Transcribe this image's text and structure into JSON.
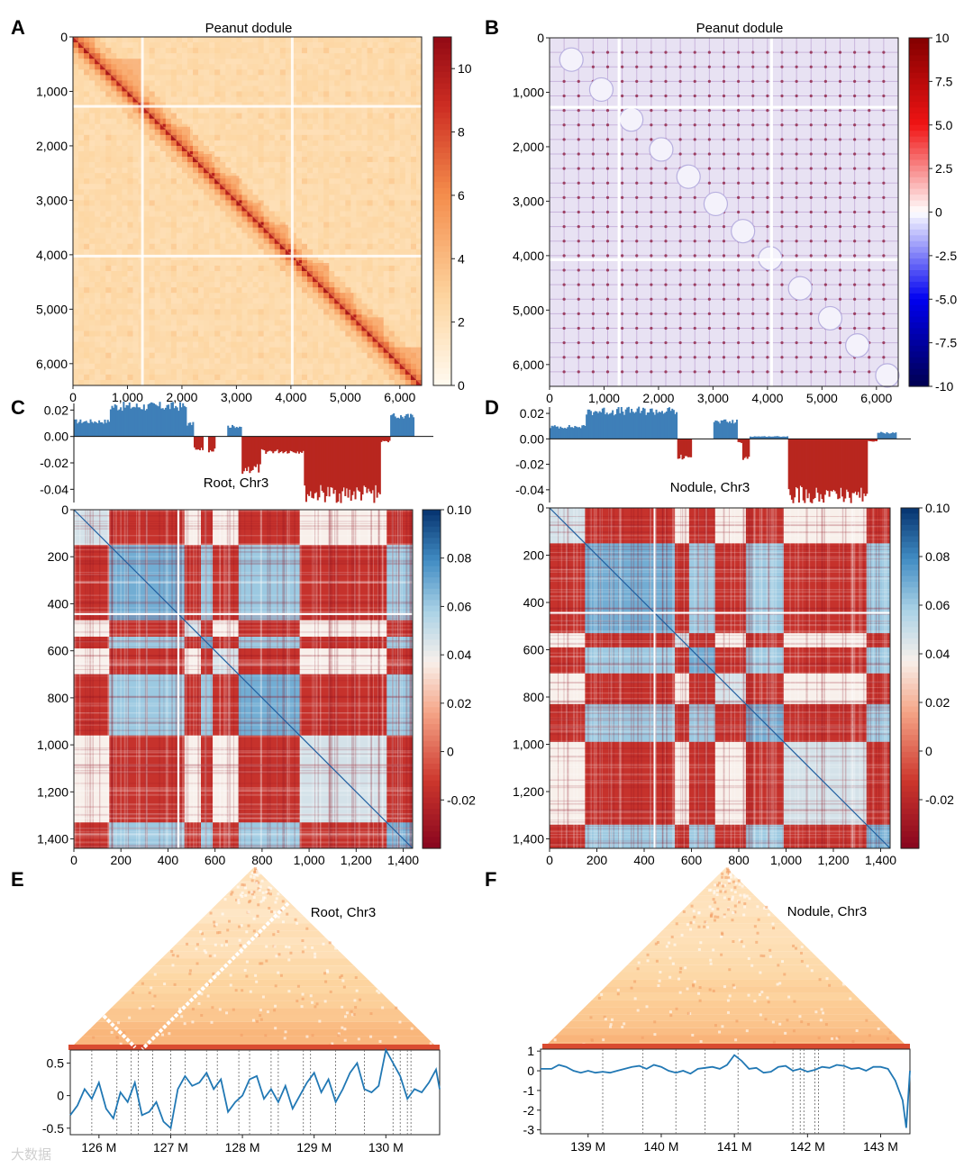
{
  "watermark": "大数据",
  "colors": {
    "orange_high": "#b71c1c",
    "blue_high": "#0a4f96",
    "red_low": "#b3000f",
    "line": "#2178b4"
  },
  "chart_data": [
    {
      "id": "A",
      "panel_label": "A",
      "type": "heatmap",
      "title": "Peanut dodule",
      "xlim": [
        0,
        6400
      ],
      "ylim": [
        0,
        6400
      ],
      "ticks": [
        0,
        1000,
        2000,
        3000,
        4000,
        5000,
        6000
      ],
      "tick_labels": [
        "0",
        "1,000",
        "2,000",
        "3,000",
        "4,000",
        "5,000",
        "6,000"
      ],
      "colorbar": {
        "range": [
          0,
          11
        ],
        "ticks": [
          0,
          2,
          4,
          6,
          8,
          10
        ],
        "tick_labels": [
          "0",
          "2",
          "4",
          "6",
          "8",
          "10"
        ]
      },
      "block_bounds": [
        0,
        400,
        1250,
        1650,
        2150,
        2550,
        3050,
        3450,
        3950,
        4150,
        4700,
        5150,
        5700,
        6400
      ]
    },
    {
      "id": "B",
      "panel_label": "B",
      "type": "heatmap",
      "title": "Peanut dodule",
      "xlim": [
        0,
        6400
      ],
      "ylim": [
        0,
        6400
      ],
      "ticks": [
        0,
        1000,
        2000,
        3000,
        4000,
        5000,
        6000
      ],
      "tick_labels": [
        "0",
        "1,000",
        "2,000",
        "3,000",
        "4,000",
        "5,000",
        "6,000"
      ],
      "colorbar": {
        "range": [
          -10,
          10
        ],
        "ticks": [
          10,
          7.5,
          5.0,
          2.5,
          0,
          -2.5,
          -5.0,
          -7.5,
          -10
        ],
        "tick_labels": [
          "10",
          "7.5",
          "5.0",
          "2.5",
          "0",
          "-2.5",
          "-5.0",
          "-7.5",
          "-10"
        ]
      },
      "circle_centers": [
        400,
        950,
        1500,
        2050,
        2550,
        3050,
        3550,
        4050,
        4600,
        5150,
        5650,
        6200
      ]
    },
    {
      "id": "C",
      "panel_label": "C",
      "type": "heatmap",
      "track_title": "Root, Chr3",
      "track_ylim": [
        -0.05,
        0.025
      ],
      "track_ticks": [
        0.02,
        0.0,
        -0.02,
        -0.04
      ],
      "track_tick_labels": [
        "0.02",
        "0.00",
        "-0.02",
        "-0.04"
      ],
      "eigenvector_segments": [
        {
          "start": 0,
          "end": 150,
          "value": 0.012
        },
        {
          "start": 150,
          "end": 470,
          "value": 0.024
        },
        {
          "start": 470,
          "end": 500,
          "value": 0.01
        },
        {
          "start": 500,
          "end": 540,
          "value": -0.01
        },
        {
          "start": 540,
          "end": 560,
          "value": 0.0
        },
        {
          "start": 560,
          "end": 590,
          "value": -0.011
        },
        {
          "start": 590,
          "end": 640,
          "value": 0.0
        },
        {
          "start": 640,
          "end": 700,
          "value": 0.008
        },
        {
          "start": 700,
          "end": 780,
          "value": -0.026
        },
        {
          "start": 780,
          "end": 960,
          "value": -0.012
        },
        {
          "start": 960,
          "end": 1280,
          "value": -0.046
        },
        {
          "start": 1280,
          "end": 1320,
          "value": -0.004
        },
        {
          "start": 1320,
          "end": 1420,
          "value": 0.016
        }
      ],
      "xlim": [
        0,
        1440
      ],
      "ylim": [
        0,
        1440
      ],
      "ticks": [
        0,
        200,
        400,
        600,
        800,
        1000,
        1200,
        1400
      ],
      "tick_labels": [
        "0",
        "200",
        "400",
        "600",
        "800",
        "1,000",
        "1,200",
        "1,400"
      ],
      "compartment_bounds": [
        0,
        150,
        470,
        540,
        590,
        700,
        960,
        1330,
        1440
      ],
      "colorbar": {
        "range": [
          -0.04,
          0.1
        ],
        "ticks": [
          0.1,
          0.08,
          0.06,
          0.04,
          0.02,
          0,
          -0.02
        ],
        "tick_labels": [
          "0.10",
          "0.08",
          "0.06",
          "0.04",
          "0.02",
          "0",
          "-0.02"
        ]
      }
    },
    {
      "id": "D",
      "panel_label": "D",
      "type": "heatmap",
      "track_title": "Nodule, Chr3",
      "track_ylim": [
        -0.05,
        0.025
      ],
      "track_ticks": [
        0.02,
        0.0,
        -0.02,
        -0.04
      ],
      "track_tick_labels": [
        "0.02",
        "0.00",
        "-0.02",
        "-0.04"
      ],
      "eigenvector_segments": [
        {
          "start": 0,
          "end": 150,
          "value": 0.01
        },
        {
          "start": 150,
          "end": 530,
          "value": 0.023
        },
        {
          "start": 530,
          "end": 590,
          "value": -0.015
        },
        {
          "start": 590,
          "end": 680,
          "value": 0.0
        },
        {
          "start": 680,
          "end": 780,
          "value": 0.014
        },
        {
          "start": 780,
          "end": 800,
          "value": -0.003
        },
        {
          "start": 800,
          "end": 830,
          "value": -0.016
        },
        {
          "start": 830,
          "end": 990,
          "value": 0.002
        },
        {
          "start": 990,
          "end": 1320,
          "value": -0.046
        },
        {
          "start": 1320,
          "end": 1360,
          "value": -0.002
        },
        {
          "start": 1360,
          "end": 1440,
          "value": 0.005
        }
      ],
      "xlim": [
        0,
        1440
      ],
      "ylim": [
        0,
        1440
      ],
      "ticks": [
        0,
        200,
        400,
        600,
        800,
        1000,
        1200,
        1400
      ],
      "tick_labels": [
        "0",
        "200",
        "400",
        "600",
        "800",
        "1,000",
        "1,200",
        "1,400"
      ],
      "compartment_bounds": [
        0,
        150,
        530,
        590,
        700,
        830,
        990,
        1340,
        1440
      ],
      "colorbar": {
        "range": [
          -0.04,
          0.1
        ],
        "ticks": [
          0.1,
          0.08,
          0.06,
          0.04,
          0.02,
          0,
          -0.02
        ],
        "tick_labels": [
          "0.10",
          "0.08",
          "0.06",
          "0.04",
          "0.02",
          "0",
          "-0.02"
        ]
      }
    },
    {
      "id": "E",
      "panel_label": "E",
      "type": "line",
      "title": "Root, Chr3",
      "xlim": [
        125.6,
        130.75
      ],
      "ylim": [
        -0.6,
        0.7
      ],
      "xticks": [
        126,
        127,
        128,
        129,
        130
      ],
      "xtick_labels": [
        "126 M",
        "127 M",
        "128 M",
        "129 M",
        "130 M"
      ],
      "yticks": [
        0.5,
        0,
        -0.5
      ],
      "ytick_labels": [
        "0.5",
        "0",
        "-0.5"
      ],
      "boundaries": [
        125.9,
        126.25,
        126.45,
        126.55,
        126.75,
        127.0,
        127.2,
        127.5,
        127.65,
        127.95,
        128.1,
        128.4,
        128.5,
        128.85,
        128.95,
        129.3,
        129.7,
        130.1,
        130.2,
        130.3,
        130.35
      ],
      "x": [
        125.6,
        125.7,
        125.8,
        125.9,
        126.0,
        126.1,
        126.2,
        126.3,
        126.4,
        126.5,
        126.6,
        126.7,
        126.8,
        126.9,
        127.0,
        127.1,
        127.2,
        127.3,
        127.4,
        127.5,
        127.6,
        127.7,
        127.8,
        127.9,
        128.0,
        128.1,
        128.2,
        128.3,
        128.4,
        128.5,
        128.6,
        128.7,
        128.8,
        128.9,
        129.0,
        129.1,
        129.2,
        129.3,
        129.4,
        129.5,
        129.6,
        129.7,
        129.8,
        129.9,
        130.0,
        130.1,
        130.2,
        130.3,
        130.4,
        130.5,
        130.6,
        130.7,
        130.75
      ],
      "values": [
        -0.3,
        -0.15,
        0.1,
        -0.05,
        0.2,
        -0.2,
        -0.35,
        0.05,
        -0.1,
        0.2,
        -0.3,
        -0.25,
        -0.1,
        -0.4,
        -0.5,
        0.1,
        0.3,
        0.15,
        0.2,
        0.35,
        0.1,
        0.25,
        -0.25,
        -0.1,
        0.0,
        0.25,
        0.3,
        -0.05,
        0.1,
        -0.1,
        0.15,
        -0.2,
        0.0,
        0.2,
        0.35,
        0.05,
        0.25,
        -0.1,
        0.1,
        0.35,
        0.5,
        0.1,
        0.05,
        0.15,
        0.7,
        0.5,
        0.3,
        -0.05,
        0.1,
        0.05,
        0.2,
        0.4,
        0.1
      ]
    },
    {
      "id": "F",
      "panel_label": "F",
      "type": "line",
      "title": "Nodule, Chr3",
      "xlim": [
        138.35,
        143.4
      ],
      "ylim": [
        -3.2,
        1.1
      ],
      "xticks": [
        139,
        140,
        141,
        142,
        143
      ],
      "xtick_labels": [
        "139 M",
        "140 M",
        "141 M",
        "142 M",
        "143 M"
      ],
      "yticks": [
        1,
        0,
        -1,
        -2,
        -3
      ],
      "ytick_labels": [
        "1",
        "0",
        "-1",
        "-2",
        "-3"
      ],
      "boundaries": [
        139.2,
        139.75,
        140.2,
        140.6,
        141.05,
        141.8,
        141.9,
        141.95,
        142.1,
        142.15,
        142.5
      ],
      "x": [
        138.35,
        138.5,
        138.6,
        138.7,
        138.8,
        138.9,
        139.0,
        139.1,
        139.2,
        139.3,
        139.4,
        139.5,
        139.6,
        139.7,
        139.8,
        139.9,
        140.0,
        140.1,
        140.2,
        140.3,
        140.4,
        140.5,
        140.6,
        140.7,
        140.8,
        140.9,
        141.0,
        141.1,
        141.2,
        141.3,
        141.4,
        141.5,
        141.6,
        141.7,
        141.8,
        141.9,
        142.0,
        142.1,
        142.2,
        142.3,
        142.4,
        142.5,
        142.6,
        142.7,
        142.8,
        142.9,
        143.0,
        143.1,
        143.2,
        143.3,
        143.35,
        143.4
      ],
      "values": [
        0.1,
        0.1,
        0.3,
        0.2,
        0.0,
        -0.1,
        0.0,
        -0.1,
        -0.05,
        -0.1,
        0.0,
        0.1,
        0.2,
        0.25,
        0.1,
        0.3,
        0.2,
        0.0,
        -0.1,
        0.0,
        -0.15,
        0.1,
        0.15,
        0.2,
        0.1,
        0.3,
        0.8,
        0.5,
        0.1,
        0.15,
        -0.1,
        -0.05,
        0.2,
        0.25,
        0.0,
        0.1,
        -0.05,
        0.05,
        0.2,
        0.15,
        0.3,
        0.25,
        0.1,
        0.15,
        0.0,
        0.2,
        0.2,
        0.1,
        -0.5,
        -1.5,
        -2.9,
        0.0
      ]
    }
  ]
}
